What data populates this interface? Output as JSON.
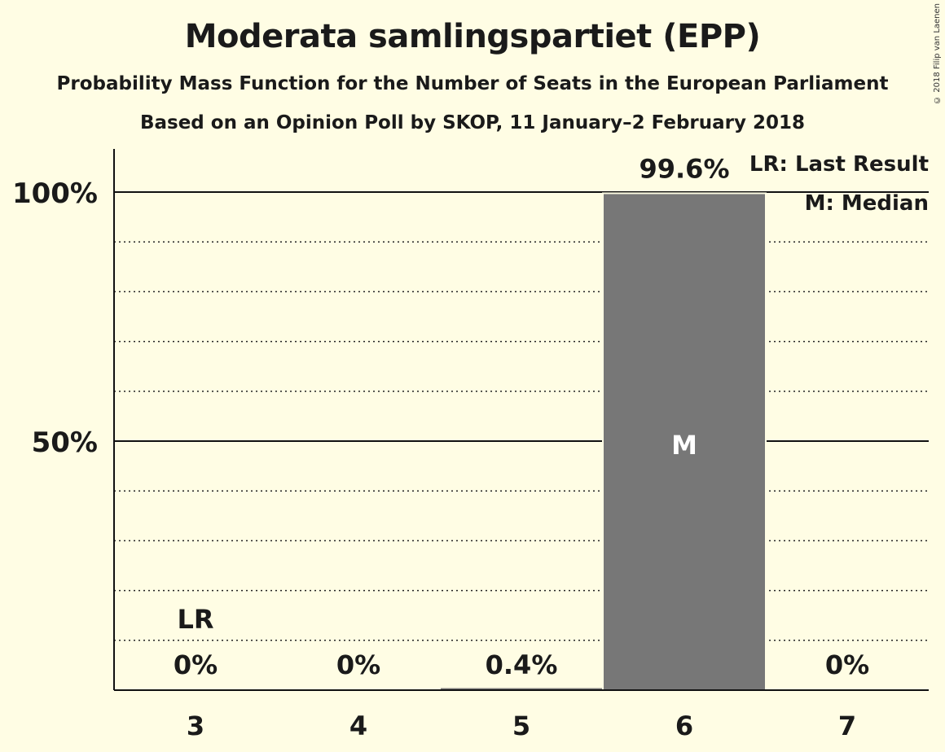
{
  "chart_data": {
    "type": "bar",
    "title": "Moderata samlingspartiet (EPP)",
    "subtitle": "Probability Mass Function for the Number of Seats in the European Parliament",
    "subtitle2": "Based on an Opinion Poll by SKOP, 11 January–2 February 2018",
    "categories": [
      "3",
      "4",
      "5",
      "6",
      "7"
    ],
    "values": [
      0,
      0,
      0.4,
      99.6,
      0
    ],
    "value_labels": [
      "0%",
      "0%",
      "0.4%",
      "99.6%",
      "0%"
    ],
    "ylim": [
      0,
      100
    ],
    "yticks": [
      {
        "value": 50,
        "label": "50%"
      },
      {
        "value": 100,
        "label": "100%"
      }
    ],
    "minor_gridlines": [
      10,
      20,
      30,
      40,
      60,
      70,
      80,
      90
    ],
    "last_result": {
      "category": "3",
      "label": "LR"
    },
    "median": {
      "category": "6",
      "label": "M"
    },
    "legend": [
      "LR: Last Result",
      "M: Median"
    ],
    "legend_position": "top-right",
    "bar_color": "#777777",
    "background_color": "#FFFDE4"
  },
  "copyright": "© 2018 Filip van Laenen"
}
